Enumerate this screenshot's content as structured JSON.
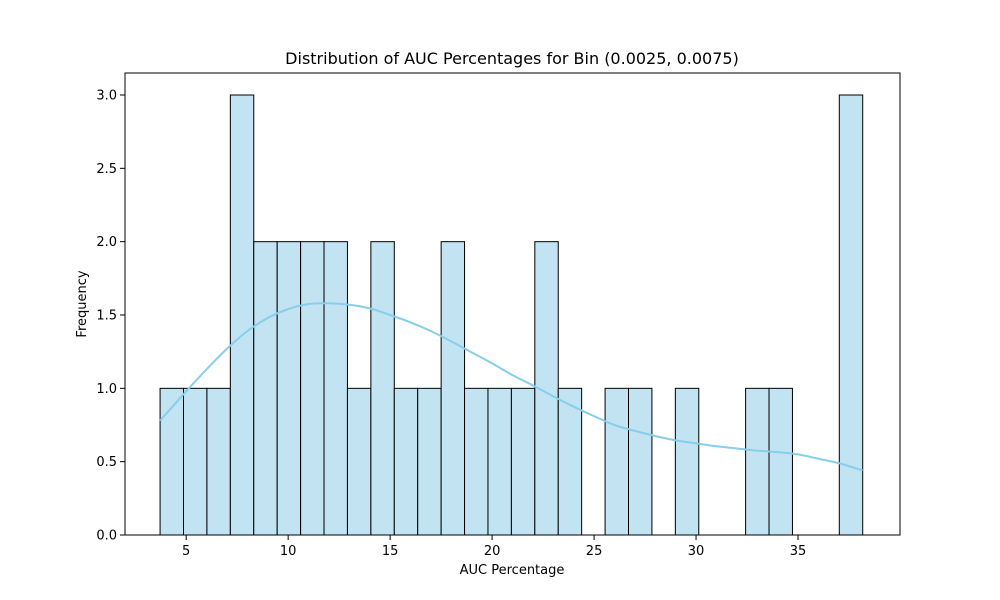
{
  "chart_data": {
    "type": "bar",
    "title": "Distribution of AUC Percentages for Bin (0.0025, 0.0075)",
    "xlabel": "AUC Percentage",
    "ylabel": "Frequency",
    "xlim": [
      2.0,
      40.0
    ],
    "ylim": [
      0,
      3.15
    ],
    "xticks": [
      5,
      10,
      15,
      20,
      25,
      30,
      35
    ],
    "yticks": [
      0.0,
      0.5,
      1.0,
      1.5,
      2.0,
      2.5,
      3.0
    ],
    "xtick_labels": [
      "5",
      "10",
      "15",
      "20",
      "25",
      "30",
      "35"
    ],
    "ytick_labels": [
      "0.0",
      "0.5",
      "1.0",
      "1.5",
      "2.0",
      "2.5",
      "3.0"
    ],
    "grid": false,
    "bin_start": 3.72,
    "bin_width": 1.1484,
    "values": [
      1,
      1,
      1,
      3,
      2,
      2,
      2,
      2,
      1,
      2,
      1,
      1,
      2,
      1,
      1,
      1,
      2,
      1,
      0,
      1,
      1,
      0,
      1,
      0,
      0,
      1,
      1,
      0,
      0,
      3
    ],
    "bar_color": "#c2e4f2",
    "edge_color": "#000000",
    "kde": {
      "color": "#87ceeb",
      "x": [
        3.72,
        5.0,
        6.0,
        7.0,
        8.0,
        9.0,
        10.0,
        11.0,
        12.0,
        13.0,
        14.0,
        15.0,
        16.0,
        17.0,
        18.0,
        19.0,
        20.0,
        21.0,
        22.0,
        23.0,
        24.0,
        25.0,
        26.0,
        27.0,
        28.0,
        29.0,
        30.0,
        31.0,
        32.0,
        33.0,
        34.0,
        35.0,
        36.0,
        37.0,
        38.17
      ],
      "y": [
        0.78,
        0.98,
        1.13,
        1.27,
        1.39,
        1.48,
        1.54,
        1.575,
        1.58,
        1.57,
        1.545,
        1.5,
        1.45,
        1.39,
        1.32,
        1.245,
        1.17,
        1.09,
        1.02,
        0.945,
        0.875,
        0.81,
        0.75,
        0.71,
        0.675,
        0.645,
        0.625,
        0.605,
        0.59,
        0.575,
        0.565,
        0.55,
        0.52,
        0.49,
        0.44
      ]
    }
  }
}
